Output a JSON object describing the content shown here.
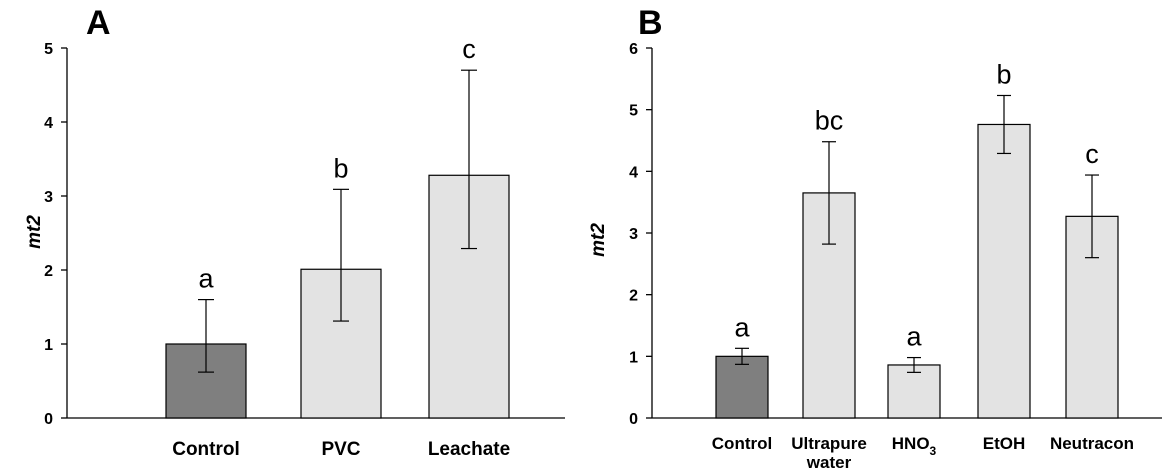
{
  "chart_data": [
    {
      "panel": "A",
      "type": "bar",
      "ylabel": "mt2",
      "ylim": [
        0,
        5
      ],
      "yticks": [
        "0",
        "1",
        "2",
        "3",
        "4",
        "5"
      ],
      "categories": [
        "Control",
        "PVC",
        "Leachate"
      ],
      "values": [
        1.0,
        2.01,
        3.28
      ],
      "error_high": [
        1.6,
        3.09,
        4.7
      ],
      "error_low": [
        0.62,
        1.31,
        2.29
      ],
      "significance": [
        "a",
        "b",
        "c"
      ],
      "colors": [
        "#7f7f7f",
        "#e3e3e3",
        "#e3e3e3"
      ]
    },
    {
      "panel": "B",
      "type": "bar",
      "ylabel": "mt2",
      "ylim": [
        0,
        6
      ],
      "yticks": [
        "0",
        "1",
        "2",
        "3",
        "4",
        "5",
        "6"
      ],
      "categories": [
        "Control",
        "Ultrapure water",
        "HNO3",
        "EtOH",
        "Neutracon"
      ],
      "values": [
        1.0,
        3.65,
        0.86,
        4.76,
        3.27
      ],
      "error_high": [
        1.13,
        4.48,
        0.98,
        5.23,
        3.94
      ],
      "error_low": [
        0.87,
        2.82,
        0.74,
        4.29,
        2.6
      ],
      "significance": [
        "a",
        "bc",
        "a",
        "b",
        "c"
      ],
      "colors": [
        "#7f7f7f",
        "#e3e3e3",
        "#e3e3e3",
        "#e3e3e3",
        "#e3e3e3"
      ]
    }
  ]
}
